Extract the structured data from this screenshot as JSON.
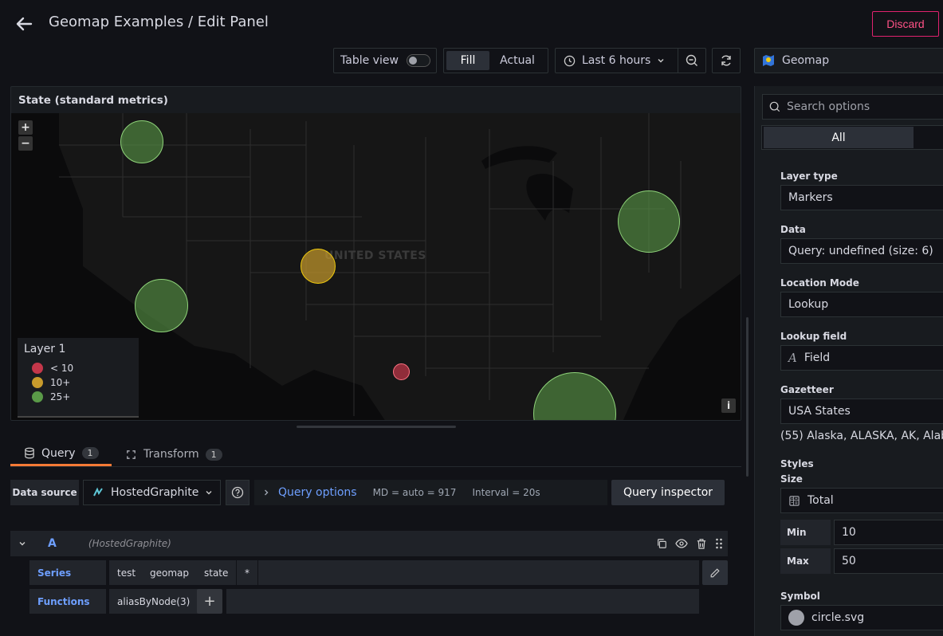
{
  "header": {
    "title": "Geomap Examples / Edit Panel",
    "discard_label": "Discard"
  },
  "toolbar": {
    "table_view_label": "Table view",
    "table_view_on": false,
    "fill_label": "Fill",
    "actual_label": "Actual",
    "time_range": "Last 6 hours",
    "visualization": "Geomap"
  },
  "panel": {
    "title": "State (standard metrics)",
    "map": {
      "country_label": "UNITED STATES",
      "zoom_in": "+",
      "zoom_out": "−",
      "info": "i",
      "legend": {
        "title": "Layer 1",
        "items": [
          {
            "label": "< 10",
            "color": "#c4374a"
          },
          {
            "label": "10+",
            "color": "#c89b2c"
          },
          {
            "label": "25+",
            "color": "#5a9a48"
          }
        ]
      }
    }
  },
  "tabs": [
    {
      "label": "Query",
      "count": "1"
    },
    {
      "label": "Transform",
      "count": "1"
    }
  ],
  "query": {
    "data_source_label": "Data source",
    "data_source": "HostedGraphite",
    "options_label": "Query options",
    "md": "MD = auto = 917",
    "interval": "Interval = 20s",
    "inspector_label": "Query inspector",
    "editor": {
      "ref_id": "A",
      "ds_name": "(HostedGraphite)",
      "series_label": "Series",
      "series_segments": [
        "test",
        "geomap",
        "state",
        "*"
      ],
      "functions_label": "Functions",
      "functions": [
        "aliasByNode(3)"
      ],
      "add": "+"
    }
  },
  "options": {
    "search_placeholder": "Search options",
    "filter_all": "All",
    "layer_type_label": "Layer type",
    "layer_type": "Markers",
    "data_label": "Data",
    "data_value": "Query: undefined (size: 6)",
    "location_mode_label": "Location Mode",
    "location_mode": "Lookup",
    "lookup_field_label": "Lookup field",
    "lookup_field": "Field",
    "gazetteer_label": "Gazetteer",
    "gazetteer": "USA States",
    "gazetteer_info": "(55) Alaska, ALASKA, AK, Alab",
    "styles_label": "Styles",
    "size_label": "Size",
    "size_value": "Total",
    "min_label": "Min",
    "min_value": "10",
    "max_label": "Max",
    "max_value": "50",
    "symbol_label": "Symbol",
    "symbol_value": "circle.svg"
  }
}
